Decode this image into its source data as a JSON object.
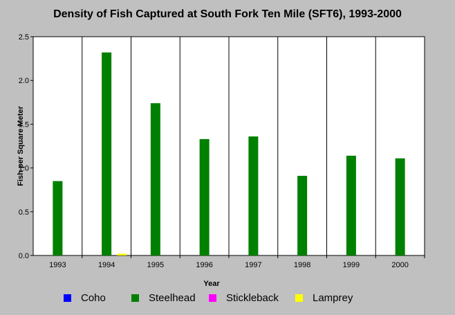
{
  "chart_data": {
    "type": "bar",
    "title": "Density of Fish Captured at South Fork Ten Mile (SFT6), 1993-2000",
    "xlabel": "Year",
    "ylabel": "Fish per Square Meter",
    "categories": [
      "1993",
      "1994",
      "1995",
      "1996",
      "1997",
      "1998",
      "1999",
      "2000"
    ],
    "ylim": [
      0,
      2.5
    ],
    "yticks": [
      "0.0",
      "0.5",
      "1.0",
      "1.5",
      "2.0",
      "2.5"
    ],
    "grid": "vertical",
    "legend_position": "bottom",
    "series": [
      {
        "name": "Coho",
        "color": "#0000ff",
        "values": [
          0,
          0,
          0,
          0,
          0,
          0,
          0,
          0
        ]
      },
      {
        "name": "Steelhead",
        "color": "#008000",
        "values": [
          0.85,
          2.32,
          1.74,
          1.33,
          1.36,
          0.91,
          1.14,
          1.11
        ]
      },
      {
        "name": "Stickleback",
        "color": "#ff00ff",
        "values": [
          0,
          0,
          0,
          0,
          0,
          0,
          0,
          0
        ]
      },
      {
        "name": "Lamprey",
        "color": "#ffff00",
        "values": [
          0,
          0.02,
          0,
          0,
          0,
          0,
          0,
          0
        ]
      }
    ]
  }
}
